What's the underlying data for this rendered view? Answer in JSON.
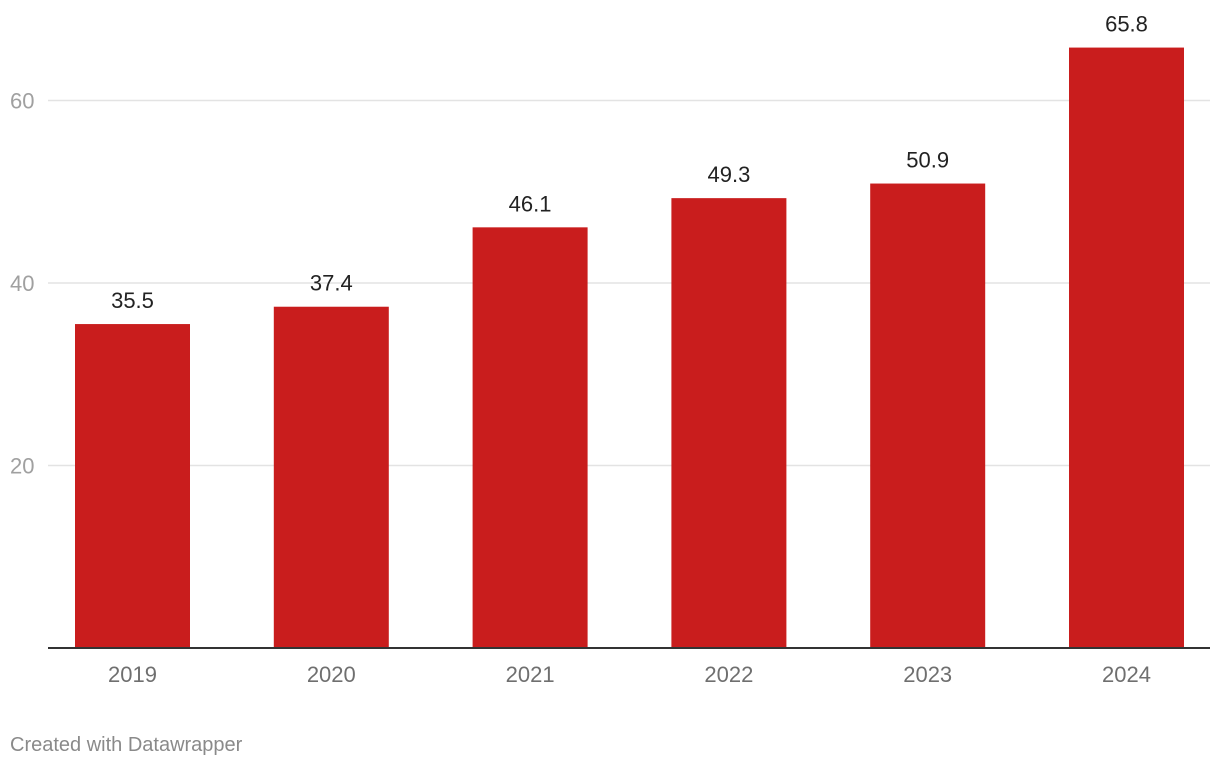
{
  "chart_data": {
    "type": "bar",
    "categories": [
      "2019",
      "2020",
      "2021",
      "2022",
      "2023",
      "2024"
    ],
    "values": [
      35.5,
      37.4,
      46.1,
      49.3,
      50.9,
      65.8
    ],
    "data_labels": [
      "35.5",
      "37.4",
      "46.1",
      "49.3",
      "50.9",
      "65.8"
    ],
    "title": "",
    "xlabel": "",
    "ylabel": "",
    "ylim": [
      0,
      66
    ],
    "y_ticks": [
      20,
      40,
      60
    ],
    "y_tick_labels": [
      "20",
      "40",
      "60"
    ],
    "grid": true,
    "legend": "none",
    "bar_color": "#c91d1d"
  },
  "footer": {
    "credit": "Created with Datawrapper"
  }
}
